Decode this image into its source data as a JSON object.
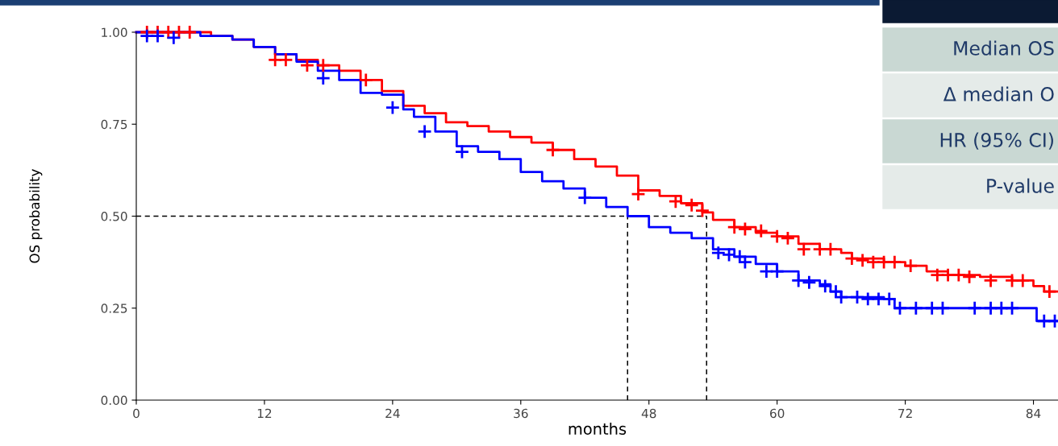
{
  "chart_data": {
    "type": "step",
    "xlabel": "months",
    "ylabel": "OS probability",
    "xlim": [
      0,
      86.3
    ],
    "xticks": [
      0,
      12,
      24,
      36,
      48,
      60,
      72,
      84
    ],
    "ylim": [
      0,
      1
    ],
    "yticks": [
      {
        "value": 0,
        "label": "0.00"
      },
      {
        "value": 0.25,
        "label": "0.25"
      },
      {
        "value": 0.5,
        "label": "0.50"
      },
      {
        "value": 0.75,
        "label": "0.75"
      },
      {
        "value": 1,
        "label": "1.00"
      }
    ],
    "grid": false,
    "legend": false,
    "line_style": "solid",
    "series": [
      {
        "color": "#ff0000",
        "x": [
          0,
          6,
          7,
          9,
          11,
          13,
          15,
          17,
          19,
          21,
          23,
          25,
          27,
          29,
          31,
          33,
          35,
          37,
          39,
          41,
          43,
          45,
          47,
          49,
          51,
          53,
          54,
          56,
          58,
          60,
          62,
          64,
          66,
          67,
          70,
          72,
          74,
          76,
          79,
          82,
          84,
          85,
          86.3
        ],
        "values": [
          1.0,
          1.0,
          0.99,
          0.98,
          0.96,
          0.94,
          0.925,
          0.91,
          0.895,
          0.87,
          0.84,
          0.8,
          0.78,
          0.755,
          0.745,
          0.73,
          0.715,
          0.7,
          0.68,
          0.655,
          0.635,
          0.61,
          0.57,
          0.555,
          0.535,
          0.51,
          0.49,
          0.47,
          0.455,
          0.445,
          0.425,
          0.41,
          0.4,
          0.385,
          0.375,
          0.365,
          0.35,
          0.34,
          0.335,
          0.325,
          0.31,
          0.295,
          0.295
        ]
      },
      {
        "color": "#0000ff",
        "x": [
          0,
          6,
          9,
          11,
          13,
          15,
          17,
          19,
          21,
          23,
          25,
          26,
          28,
          30,
          32,
          34,
          36,
          38,
          40,
          42,
          44,
          46,
          48,
          50,
          52,
          54,
          56,
          58,
          60,
          62,
          64,
          65,
          66,
          70,
          71,
          84,
          84.3,
          86.3
        ],
        "values": [
          1.0,
          0.99,
          0.98,
          0.96,
          0.94,
          0.92,
          0.895,
          0.87,
          0.835,
          0.83,
          0.79,
          0.77,
          0.73,
          0.69,
          0.675,
          0.655,
          0.62,
          0.595,
          0.575,
          0.55,
          0.525,
          0.5,
          0.47,
          0.455,
          0.44,
          0.41,
          0.39,
          0.37,
          0.35,
          0.325,
          0.315,
          0.295,
          0.28,
          0.275,
          0.25,
          0.25,
          0.215,
          0.215
        ]
      },
      {
        "type": "scatter",
        "marker": "cross",
        "color": "#ff0000",
        "x": [
          1,
          2,
          3,
          4,
          5,
          13,
          14,
          16,
          17.5,
          21.5,
          39,
          47,
          50.5,
          52,
          53,
          56,
          57,
          58.5,
          60,
          61,
          62.5,
          64,
          65,
          67,
          68,
          69,
          70,
          71,
          72.5,
          75,
          76,
          77,
          78,
          80,
          82,
          83,
          85.5
        ],
        "values": [
          1.0,
          1.0,
          1.0,
          1.0,
          1.0,
          0.925,
          0.925,
          0.91,
          0.91,
          0.87,
          0.68,
          0.56,
          0.54,
          0.53,
          0.515,
          0.47,
          0.465,
          0.46,
          0.445,
          0.44,
          0.41,
          0.41,
          0.41,
          0.385,
          0.38,
          0.375,
          0.375,
          0.375,
          0.365,
          0.34,
          0.34,
          0.34,
          0.335,
          0.325,
          0.325,
          0.325,
          0.295
        ]
      },
      {
        "type": "scatter",
        "marker": "cross",
        "color": "#0000ff",
        "x": [
          1,
          2,
          3.5,
          17.5,
          24,
          27,
          30.5,
          42,
          54.5,
          55.5,
          56.5,
          57,
          59,
          60,
          62,
          63,
          64.5,
          65.5,
          66,
          67.5,
          68.5,
          69.5,
          70.5,
          71.5,
          73,
          74.5,
          75.5,
          78.5,
          80,
          81,
          82,
          85,
          86
        ],
        "values": [
          0.99,
          0.99,
          0.985,
          0.875,
          0.795,
          0.73,
          0.675,
          0.55,
          0.4,
          0.395,
          0.39,
          0.375,
          0.35,
          0.35,
          0.325,
          0.32,
          0.31,
          0.295,
          0.28,
          0.28,
          0.275,
          0.275,
          0.275,
          0.25,
          0.25,
          0.25,
          0.25,
          0.25,
          0.25,
          0.25,
          0.25,
          0.215,
          0.215
        ]
      }
    ],
    "ref_lines": [
      {
        "axis": "y",
        "value": 0.5,
        "color": "#000000",
        "line_style": "dashed"
      },
      {
        "axis": "x",
        "value": 46.0,
        "color": "#000000",
        "line_style": "dashed"
      },
      {
        "axis": "x",
        "value": 53.4,
        "color": "#000000",
        "line_style": "dashed"
      }
    ],
    "annotations": [
      "Median OS",
      "Δ median O",
      "HR (95% CI)",
      "P-value"
    ]
  }
}
